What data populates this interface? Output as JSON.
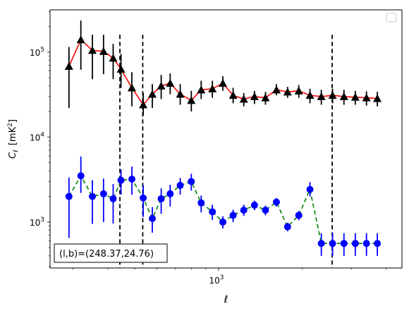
{
  "chart_data": {
    "type": "scatter",
    "xlabel": "ℓ",
    "ylabel_main": "C",
    "ylabel_sub": "ℓ",
    "ylabel_unit_open": "[mK",
    "ylabel_unit_sup": "2",
    "ylabel_unit_close": "]",
    "x_scale": "log",
    "y_scale": "log",
    "xlim": [
      248,
      4560
    ],
    "ylim": [
      288,
      314000
    ],
    "x_ticks": [
      {
        "value": 1000,
        "base": "10",
        "exp": "3"
      }
    ],
    "y_ticks": [
      {
        "value": 1000,
        "base": "10",
        "exp": "3"
      },
      {
        "value": 10000,
        "base": "10",
        "exp": "4"
      },
      {
        "value": 100000,
        "base": "10",
        "exp": "5"
      }
    ],
    "vlines": [
      442,
      534,
      2560
    ],
    "annotation": {
      "text": "(l,b)=(248.37,24.76)",
      "position": "bottom-left"
    },
    "legend": {
      "position": "top-right",
      "entries": []
    },
    "colors": {
      "upper_line": "#ff0000",
      "upper_marker": "#000000",
      "lower_line": "#008000",
      "lower_marker": "#0000ff",
      "lower_errorbar": "#0000ff",
      "upper_errorbar": "#000000"
    },
    "series": [
      {
        "marker": "triangle",
        "line_style": "solid",
        "x": [
          290,
          320,
          352,
          386,
          418,
          446,
          488,
          536,
          578,
          622,
          670,
          728,
          798,
          866,
          950,
          1036,
          1128,
          1232,
          1346,
          1474,
          1614,
          1770,
          1942,
          2130,
          2340,
          2568,
          2822,
          3100,
          3400,
          3720
        ],
        "y": [
          68000,
          140000,
          105000,
          102000,
          85000,
          63000,
          38000,
          24000,
          32000,
          40000,
          43000,
          32000,
          27000,
          36000,
          37000,
          43000,
          31000,
          28000,
          30000,
          29000,
          36000,
          34000,
          35000,
          31000,
          30000,
          31000,
          30000,
          29500,
          29000,
          28500
        ],
        "y_low": [
          22000,
          62000,
          48000,
          55000,
          48000,
          38000,
          23000,
          18000,
          22000,
          28000,
          32000,
          24000,
          20000,
          28000,
          29000,
          35000,
          25000,
          23000,
          24500,
          24000,
          31000,
          29000,
          29000,
          25000,
          24000,
          25000,
          24000,
          24000,
          23500,
          23000
        ],
        "y_high": [
          115000,
          235000,
          160000,
          160000,
          125000,
          95000,
          58000,
          33000,
          42000,
          54000,
          56000,
          42000,
          35000,
          46000,
          46000,
          52000,
          38000,
          33000,
          35000,
          34000,
          42000,
          39000,
          41000,
          37000,
          36000,
          37000,
          36000,
          35000,
          34500,
          34000
        ]
      },
      {
        "marker": "circle",
        "line_style": "dashed",
        "x": [
          290,
          320,
          352,
          386,
          418,
          446,
          488,
          536,
          578,
          622,
          670,
          728,
          798,
          866,
          950,
          1036,
          1128,
          1232,
          1346,
          1474,
          1614,
          1770,
          1942,
          2130,
          2340,
          2568,
          2822,
          3100,
          3400,
          3720
        ],
        "y": [
          2000,
          3500,
          2000,
          2150,
          1880,
          3100,
          3200,
          1920,
          1100,
          1880,
          2150,
          2700,
          3000,
          1680,
          1320,
          1000,
          1200,
          1380,
          1580,
          1380,
          1720,
          880,
          1200,
          2420,
          560,
          560,
          560,
          560,
          560,
          560
        ],
        "y_low": [
          650,
          2200,
          950,
          1000,
          960,
          2100,
          2100,
          1150,
          750,
          1250,
          1520,
          2100,
          2350,
          1300,
          1060,
          840,
          1000,
          1180,
          1380,
          1200,
          1520,
          780,
          1050,
          2000,
          400,
          400,
          400,
          400,
          400,
          400
        ],
        "y_high": [
          3350,
          5900,
          3100,
          3250,
          2800,
          4150,
          4500,
          2700,
          1500,
          2500,
          2750,
          3300,
          3700,
          2050,
          1600,
          1170,
          1400,
          1600,
          1790,
          1560,
          1920,
          980,
          1350,
          2950,
          740,
          740,
          740,
          740,
          740,
          740
        ]
      }
    ]
  }
}
